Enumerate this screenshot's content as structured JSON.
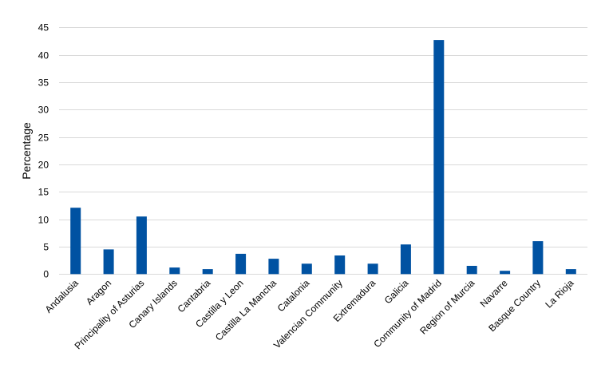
{
  "chart_data": {
    "type": "bar",
    "title": "",
    "xlabel": "",
    "ylabel": "Percentage",
    "ylim": [
      0,
      45
    ],
    "yticks": [
      0,
      5,
      10,
      15,
      20,
      25,
      30,
      35,
      40,
      45
    ],
    "grid": true,
    "legend": null,
    "bar_color": "#0052a2",
    "categories": [
      "Andalusia",
      "Aragon",
      "Principality of Asturias",
      "Canary Islands",
      "Cantabria",
      "Castilla y Leon",
      "Castilla La Mancha",
      "Catalonia",
      "Valencian Community",
      "Extremadura",
      "Galicia",
      "Community of Madrid",
      "Region of Murcia",
      "Navarre",
      "Basque Country",
      "La Rioja"
    ],
    "values": [
      12.1,
      4.5,
      10.5,
      1.2,
      0.9,
      3.7,
      2.8,
      1.9,
      3.4,
      1.9,
      5.4,
      42.7,
      1.5,
      0.6,
      6.0,
      0.9
    ]
  }
}
